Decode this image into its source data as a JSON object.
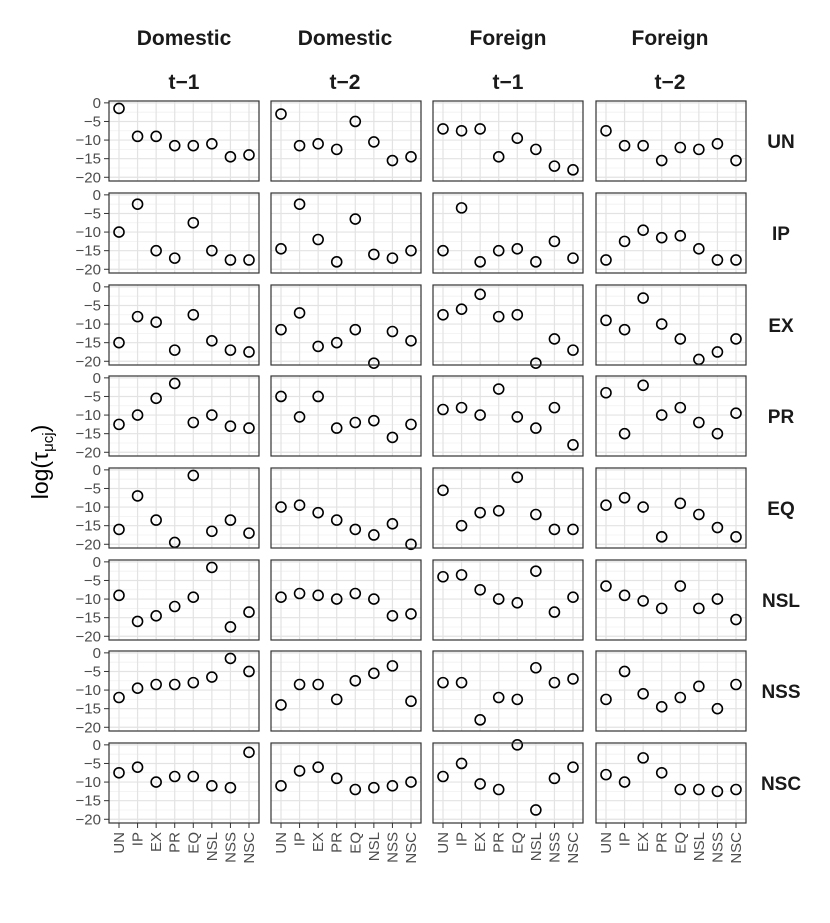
{
  "chart_data": {
    "type": "scatter",
    "ylabel": {
      "main": "log(τ",
      "sub": "μ",
      "subsub": "cj",
      "close": ")"
    },
    "columns": [
      {
        "line1": "Domestic",
        "line2": "t−1"
      },
      {
        "line1": "Domestic",
        "line2": "t−2"
      },
      {
        "line1": "Foreign",
        "line2": "t−1"
      },
      {
        "line1": "Foreign",
        "line2": "t−2"
      }
    ],
    "rows": [
      "UN",
      "IP",
      "EX",
      "PR",
      "EQ",
      "NSL",
      "NSS",
      "NSC"
    ],
    "x_categories": [
      "UN",
      "IP",
      "EX",
      "PR",
      "EQ",
      "NSL",
      "NSS",
      "NSC"
    ],
    "y_ticks": [
      0,
      -5,
      -10,
      -15,
      -20
    ],
    "y_tick_labels": [
      "0",
      "−5",
      "−10",
      "−15",
      "−20"
    ],
    "ylim": [
      -21,
      0.5
    ],
    "grid": true,
    "values": {
      "UN": [
        [
          -1.5,
          -9,
          -9,
          -11.5,
          -11.5,
          -11,
          -14.5,
          -14
        ],
        [
          -3,
          -11.5,
          -11,
          -12.5,
          -5,
          -10.5,
          -15.5,
          -14.5
        ],
        [
          -7,
          -7.5,
          -7,
          -14.5,
          -9.5,
          -12.5,
          -17,
          -18
        ],
        [
          -7.5,
          -11.5,
          -11.5,
          -15.5,
          -12,
          -12.5,
          -11,
          -15.5
        ]
      ],
      "IP": [
        [
          -10,
          -2.5,
          -15,
          -17,
          -7.5,
          -15,
          -17.5,
          -17.5
        ],
        [
          -14.5,
          -2.5,
          -12,
          -18,
          -6.5,
          -16,
          -17,
          -15
        ],
        [
          -15,
          -3.5,
          -18,
          -15,
          -14.5,
          -18,
          -12.5,
          -17
        ],
        [
          -17.5,
          -12.5,
          -9.5,
          -11.5,
          -11,
          -14.5,
          -17.5,
          -17.5
        ]
      ],
      "EX": [
        [
          -15,
          -8,
          -9.5,
          -17,
          -7.5,
          -14.5,
          -17,
          -17.5
        ],
        [
          -11.5,
          -7,
          -16,
          -15,
          -11.5,
          -20.5,
          -12,
          -14.5
        ],
        [
          -7.5,
          -6,
          -2,
          -8,
          -7.5,
          -20.5,
          -14,
          -17
        ],
        [
          -9,
          -11.5,
          -3,
          -10,
          -14,
          -19.5,
          -17.5,
          -14
        ]
      ],
      "PR": [
        [
          -12.5,
          -10,
          -5.5,
          -1.5,
          -12,
          -10,
          -13,
          -13.5
        ],
        [
          -5,
          -10.5,
          -5,
          -13.5,
          -12,
          -11.5,
          -16,
          -12.5
        ],
        [
          -8.5,
          -8,
          -10,
          -3,
          -10.5,
          -13.5,
          -8,
          -18
        ],
        [
          -4,
          -15,
          -2,
          -10,
          -8,
          -12,
          -15,
          -9.5
        ]
      ],
      "EQ": [
        [
          -16,
          -7,
          -13.5,
          -19.5,
          -1.5,
          -16.5,
          -13.5,
          -17
        ],
        [
          -10,
          -9.5,
          -11.5,
          -13.5,
          -16,
          -17.5,
          -14.5,
          -20
        ],
        [
          -5.5,
          -15,
          -11.5,
          -11,
          -2,
          -12,
          -16,
          -16
        ],
        [
          -9.5,
          -7.5,
          -10,
          -18,
          -9,
          -12,
          -15.5,
          -18
        ]
      ],
      "NSL": [
        [
          -9,
          -16,
          -14.5,
          -12,
          -9.5,
          -1.5,
          -17.5,
          -13.5
        ],
        [
          -9.5,
          -8.5,
          -9,
          -10,
          -8.5,
          -10,
          -14.5,
          -14
        ],
        [
          -4,
          -3.5,
          -7.5,
          -10,
          -11,
          -2.5,
          -13.5,
          -9.5
        ],
        [
          -6.5,
          -9,
          -10.5,
          -12.5,
          -6.5,
          -12.5,
          -10,
          -15.5
        ]
      ],
      "NSS": [
        [
          -12,
          -9.5,
          -8.5,
          -8.5,
          -8,
          -6.5,
          -1.5,
          -5
        ],
        [
          -14,
          -8.5,
          -8.5,
          -12.5,
          -7.5,
          -5.5,
          -3.5,
          -13
        ],
        [
          -8,
          -8,
          -18,
          -12,
          -12.5,
          -4,
          -8,
          -7
        ],
        [
          -12.5,
          -5,
          -11,
          -14.5,
          -12,
          -9,
          -15,
          -8.5
        ]
      ],
      "NSC": [
        [
          -7.5,
          -6,
          -10,
          -8.5,
          -8.5,
          -11,
          -11.5,
          -2
        ],
        [
          -11,
          -7,
          -6,
          -9,
          -12,
          -11.5,
          -11,
          -10
        ],
        [
          -8.5,
          -5,
          -10.5,
          -12,
          0,
          -17.5,
          -9,
          -6
        ],
        [
          -8,
          -10,
          -3.5,
          -7.5,
          -12,
          -12,
          -12.5,
          -12
        ]
      ]
    }
  }
}
